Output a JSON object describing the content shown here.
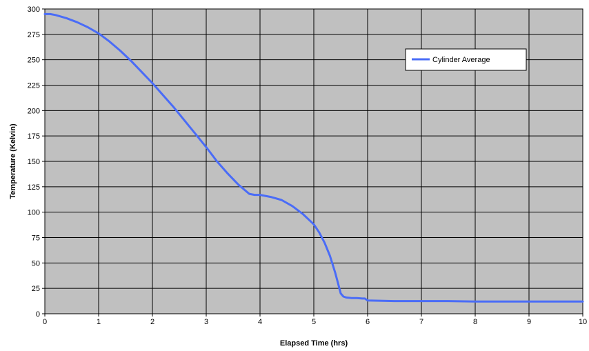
{
  "chart_data": {
    "type": "line",
    "title": "",
    "xlabel": "Elapsed Time (hrs)",
    "ylabel": "Temperature (Kelvin)",
    "xlim": [
      0,
      10
    ],
    "ylim": [
      0,
      300
    ],
    "x_ticks": [
      0,
      1,
      2,
      3,
      4,
      5,
      6,
      7,
      8,
      9,
      10
    ],
    "y_ticks": [
      0,
      25,
      50,
      75,
      100,
      125,
      150,
      175,
      200,
      225,
      250,
      275,
      300
    ],
    "x_tick_labels": [
      "0",
      "1",
      "2",
      "3",
      "4",
      "5",
      "6",
      "7",
      "8",
      "9",
      "10"
    ],
    "y_tick_labels": [
      "0",
      "25",
      "50",
      "75",
      "100",
      "125",
      "150",
      "175",
      "200",
      "225",
      "250",
      "275",
      "300"
    ],
    "grid": true,
    "legend_position": "top-right",
    "plot_background": "#c0c0c0",
    "series": [
      {
        "name": "Cylinder Average",
        "color": "#4a6cf7",
        "x": [
          0,
          0.1,
          0.2,
          0.4,
          0.6,
          0.8,
          1.0,
          1.2,
          1.4,
          1.6,
          1.8,
          2.0,
          2.2,
          2.4,
          2.6,
          2.8,
          3.0,
          3.2,
          3.4,
          3.6,
          3.8,
          3.9,
          4.0,
          4.1,
          4.2,
          4.4,
          4.6,
          4.8,
          5.0,
          5.1,
          5.2,
          5.3,
          5.4,
          5.45,
          5.5,
          5.55,
          5.6,
          5.7,
          5.8,
          5.9,
          5.95,
          6.0,
          6.5,
          7.0,
          7.5,
          8.0,
          8.5,
          9.0,
          9.5,
          10.0
        ],
        "y": [
          295,
          295,
          294,
          291,
          287,
          282,
          276,
          268,
          259,
          249,
          238,
          227,
          215,
          203,
          190,
          177,
          164,
          150,
          138,
          127,
          118,
          117,
          117,
          116,
          115,
          112,
          106,
          98,
          88,
          80,
          70,
          57,
          40,
          30,
          20,
          17,
          16,
          15.5,
          15.5,
          15,
          15,
          13,
          12.5,
          12.5,
          12.5,
          12,
          12,
          12,
          12,
          12
        ]
      }
    ]
  }
}
